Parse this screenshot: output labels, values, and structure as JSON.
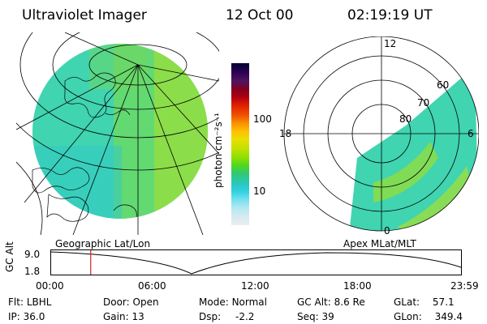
{
  "header": {
    "instrument": "Ultraviolet Imager",
    "date": "12 Oct 00",
    "time": "02:19:19 UT"
  },
  "colorbar": {
    "unit": "photon cm⁻²s⁻¹",
    "ticks": [
      "100",
      "10"
    ],
    "colors": [
      "#000030",
      "#280050",
      "#501460",
      "#800020",
      "#b00010",
      "#e02000",
      "#f05000",
      "#f89000",
      "#ffc000",
      "#e8e000",
      "#c0e000",
      "#90e000",
      "#50d820",
      "#30c870",
      "#28c8b8",
      "#30d0e0",
      "#70e0f0",
      "#b0e8f0",
      "#d8eaf0",
      "#e8eef2"
    ]
  },
  "maps": {
    "left_label": "Geographic Lat/Lon",
    "right_label": "Apex MLat/MLT",
    "polar_labels": {
      "top": "12",
      "bottom": "0",
      "left": "18",
      "right": "6",
      "rings": [
        "60",
        "70",
        "80"
      ]
    }
  },
  "altitude_plot": {
    "ylabel": "GC Alt",
    "yticks": [
      "9.0",
      "1.8"
    ],
    "xticks": [
      "00:00",
      "06:00",
      "12:00",
      "18:00",
      "23:59"
    ],
    "marker_time": "02:19",
    "marker_color": "#d02020"
  },
  "info": {
    "flt_label": "Flt:",
    "flt_value": "LBHL",
    "ip_label": "IP:",
    "ip_value": "36.0",
    "door_label": "Door:",
    "door_value": "Open",
    "gain_label": "Gain:",
    "gain_value": "13",
    "mode_label": "Mode:",
    "mode_value": "Normal",
    "dsp_label": "Dsp:",
    "dsp_value": "-2.2",
    "gcalt_label": "GC Alt:",
    "gcalt_value": "8.6 Re",
    "seq_label": "Seq:",
    "seq_value": "39",
    "glat_label": "GLat:",
    "glat_value": "57.1",
    "glon_label": "GLon:",
    "glon_value": "349.4"
  }
}
